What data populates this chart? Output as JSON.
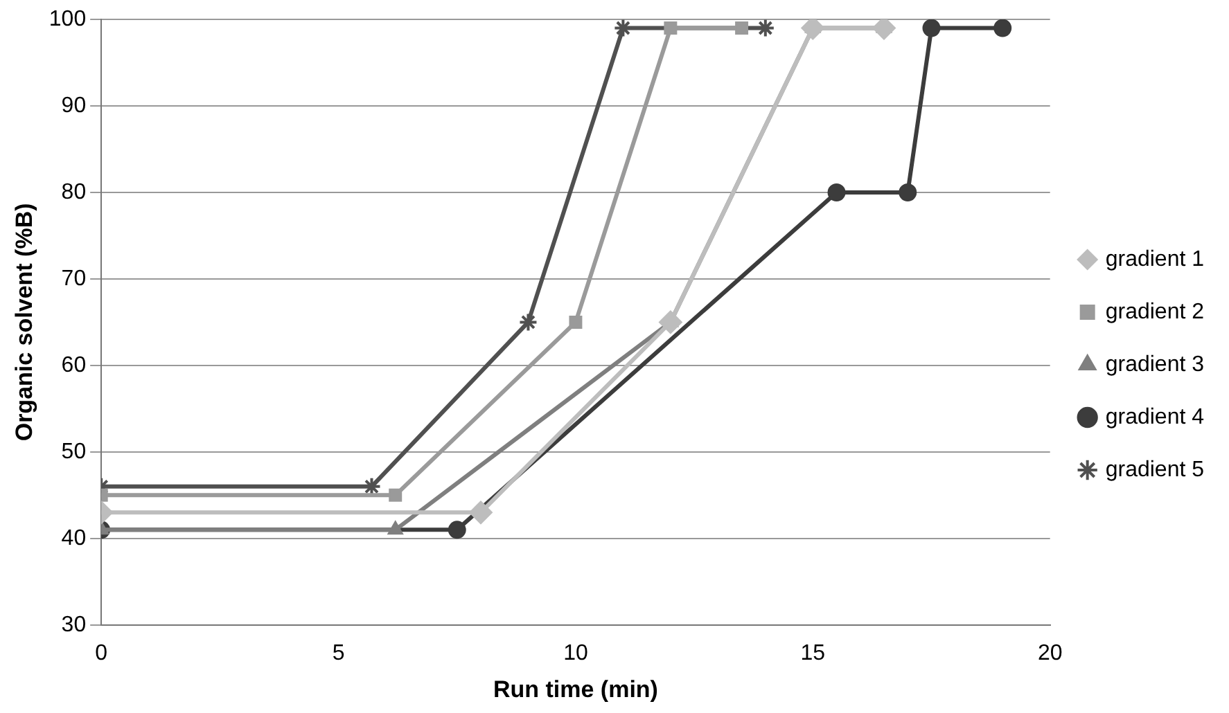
{
  "chart_data": {
    "type": "line",
    "xlabel": "Run time (min)",
    "ylabel": "Organic solvent (%B)",
    "xlim": [
      0,
      20
    ],
    "xticks": [
      0,
      5,
      10,
      15,
      20
    ],
    "ylim": [
      30,
      100
    ],
    "yticks": [
      30,
      40,
      50,
      60,
      70,
      80,
      90,
      100
    ],
    "grid": "y",
    "legend": "right",
    "line_style": "solid",
    "series": [
      {
        "name": "gradient 1",
        "color": "#bdbdbd",
        "marker": "diamond",
        "x": [
          0,
          8,
          12,
          15,
          16.5
        ],
        "values": [
          43,
          43,
          65,
          99,
          99
        ]
      },
      {
        "name": "gradient 2",
        "color": "#9a9a9a",
        "marker": "square",
        "x": [
          0,
          6.2,
          10,
          12,
          13.5
        ],
        "values": [
          45,
          45,
          65,
          99,
          99
        ]
      },
      {
        "name": "gradient 3",
        "color": "#7f7f7f",
        "marker": "triangle",
        "x": [
          0,
          6.2,
          12,
          15,
          16.5
        ],
        "values": [
          41,
          41,
          65,
          99,
          99
        ]
      },
      {
        "name": "gradient 4",
        "color": "#3c3c3c",
        "marker": "circle",
        "x": [
          0,
          7.5,
          15.5,
          17,
          17.5,
          19
        ],
        "values": [
          41,
          41,
          80,
          80,
          99,
          99
        ]
      },
      {
        "name": "gradient 5",
        "color": "#505050",
        "marker": "cross",
        "x": [
          0,
          5.7,
          9,
          11,
          14
        ],
        "values": [
          46,
          46,
          65,
          99,
          99
        ]
      }
    ]
  }
}
